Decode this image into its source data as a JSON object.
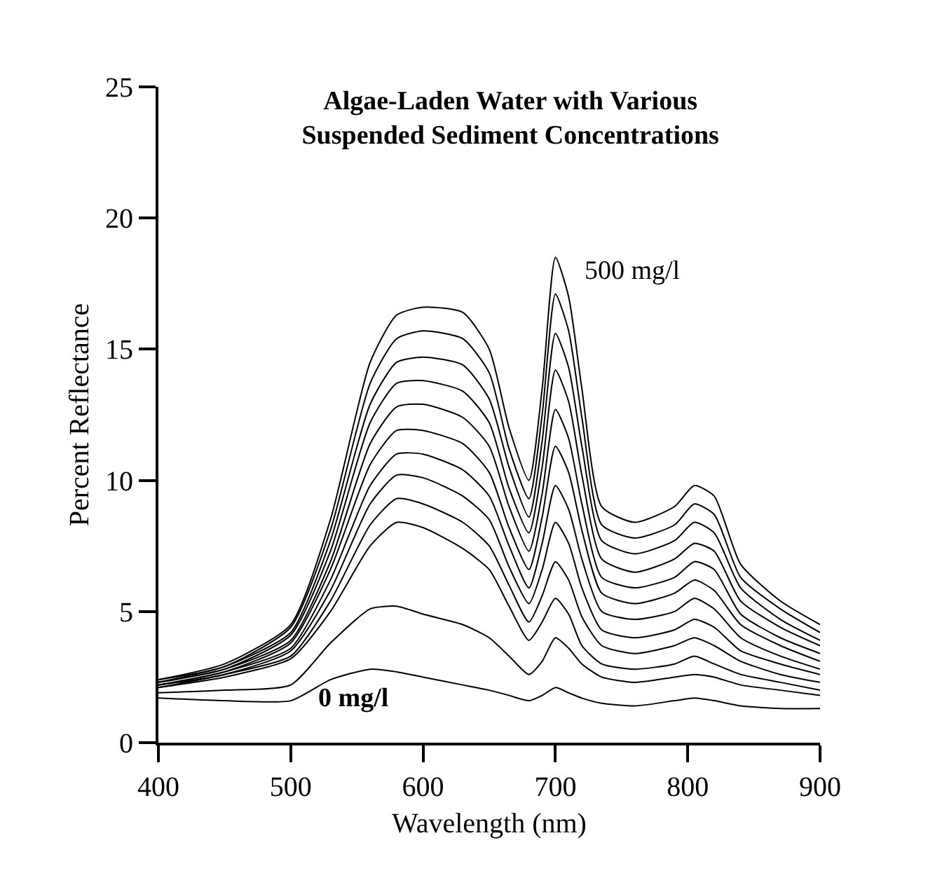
{
  "chart_data": {
    "type": "line",
    "title": "Algae-Laden Water with Various\nSuspended Sediment Concentrations",
    "xlabel": "Wavelength (nm)",
    "ylabel": "Percent Reflectance",
    "x": [
      400,
      450,
      500,
      530,
      560,
      580,
      600,
      630,
      650,
      665,
      680,
      690,
      700,
      710,
      720,
      735,
      760,
      790,
      805,
      820,
      840,
      870,
      900
    ],
    "xlim": [
      400,
      900
    ],
    "xticks": [
      400,
      500,
      600,
      700,
      800,
      900
    ],
    "ylim": [
      0,
      25
    ],
    "yticks": [
      0,
      5,
      10,
      15,
      20,
      25
    ],
    "grid": false,
    "marker": "none",
    "line_style": "solid",
    "annotations": [
      "500 mg/l",
      "0 mg/l"
    ],
    "series": [
      {
        "color": "#000000",
        "values": [
          1.7,
          1.6,
          1.6,
          2.4,
          2.8,
          2.7,
          2.5,
          2.2,
          2.0,
          1.8,
          1.6,
          1.8,
          2.1,
          1.9,
          1.7,
          1.5,
          1.4,
          1.6,
          1.7,
          1.6,
          1.4,
          1.3,
          1.3
        ]
      },
      {
        "color": "#000000",
        "values": [
          1.9,
          2.0,
          2.2,
          3.8,
          5.1,
          5.2,
          4.9,
          4.5,
          4.0,
          3.3,
          2.6,
          3.1,
          4.0,
          3.6,
          3.0,
          2.5,
          2.3,
          2.5,
          2.6,
          2.5,
          2.2,
          2.0,
          1.8
        ]
      },
      {
        "color": "#000000",
        "values": [
          2.1,
          2.5,
          3.2,
          5.0,
          7.5,
          8.4,
          8.2,
          7.4,
          6.6,
          5.2,
          3.9,
          4.6,
          5.5,
          4.9,
          3.7,
          3.0,
          2.8,
          3.0,
          3.3,
          3.0,
          2.6,
          2.3,
          2.0
        ]
      },
      {
        "color": "#000000",
        "values": [
          2.1,
          2.6,
          3.3,
          5.4,
          8.3,
          9.3,
          9.1,
          8.4,
          7.5,
          6.0,
          4.6,
          5.6,
          6.9,
          6.2,
          4.8,
          3.7,
          3.4,
          3.7,
          4.0,
          3.7,
          3.1,
          2.6,
          2.3
        ]
      },
      {
        "color": "#000000",
        "values": [
          2.2,
          2.6,
          3.5,
          5.8,
          9.1,
          10.2,
          10.1,
          9.4,
          8.5,
          6.7,
          5.3,
          6.6,
          8.4,
          7.6,
          5.9,
          4.3,
          4.0,
          4.3,
          4.7,
          4.4,
          3.5,
          3.0,
          2.6
        ]
      },
      {
        "color": "#000000",
        "values": [
          2.2,
          2.7,
          3.6,
          6.2,
          9.8,
          11.0,
          11.0,
          10.4,
          9.4,
          7.5,
          5.9,
          7.6,
          9.8,
          8.9,
          7.0,
          5.0,
          4.7,
          5.0,
          5.5,
          5.1,
          4.0,
          3.3,
          2.8
        ]
      },
      {
        "color": "#000000",
        "values": [
          2.2,
          2.7,
          3.8,
          6.6,
          10.6,
          11.9,
          11.9,
          11.4,
          10.3,
          8.2,
          6.6,
          8.6,
          11.3,
          10.3,
          8.1,
          5.7,
          5.3,
          5.7,
          6.2,
          5.8,
          4.5,
          3.7,
          3.1
        ]
      },
      {
        "color": "#000000",
        "values": [
          2.3,
          2.8,
          3.9,
          6.9,
          11.4,
          12.8,
          12.9,
          12.4,
          11.3,
          9.0,
          7.3,
          9.5,
          12.7,
          11.6,
          9.1,
          6.3,
          5.9,
          6.3,
          6.9,
          6.6,
          4.9,
          4.0,
          3.4
        ]
      },
      {
        "color": "#000000",
        "values": [
          2.3,
          2.8,
          4.1,
          7.3,
          12.2,
          13.7,
          13.8,
          13.4,
          12.2,
          9.7,
          8.0,
          10.5,
          14.2,
          13.0,
          10.2,
          7.0,
          6.5,
          7.0,
          7.6,
          7.3,
          5.4,
          4.4,
          3.7
        ]
      },
      {
        "color": "#000000",
        "values": [
          2.3,
          2.9,
          4.2,
          7.7,
          12.9,
          14.5,
          14.7,
          14.4,
          13.1,
          10.5,
          8.6,
          11.5,
          15.6,
          14.3,
          11.3,
          7.7,
          7.2,
          7.7,
          8.4,
          8.0,
          5.9,
          4.7,
          3.9
        ]
      },
      {
        "color": "#000000",
        "values": [
          2.4,
          2.9,
          4.4,
          8.1,
          13.7,
          15.4,
          15.7,
          15.4,
          14.1,
          11.2,
          9.3,
          12.5,
          17.1,
          15.7,
          12.4,
          8.3,
          7.8,
          8.3,
          9.1,
          8.7,
          6.3,
          5.1,
          4.2
        ]
      },
      {
        "color": "#000000",
        "values": [
          2.4,
          3.0,
          4.5,
          8.5,
          14.5,
          16.3,
          16.6,
          16.4,
          15.0,
          12.0,
          10.0,
          13.5,
          18.5,
          17.0,
          13.5,
          9.0,
          8.4,
          9.0,
          9.8,
          9.4,
          6.8,
          5.4,
          4.5
        ]
      }
    ]
  }
}
